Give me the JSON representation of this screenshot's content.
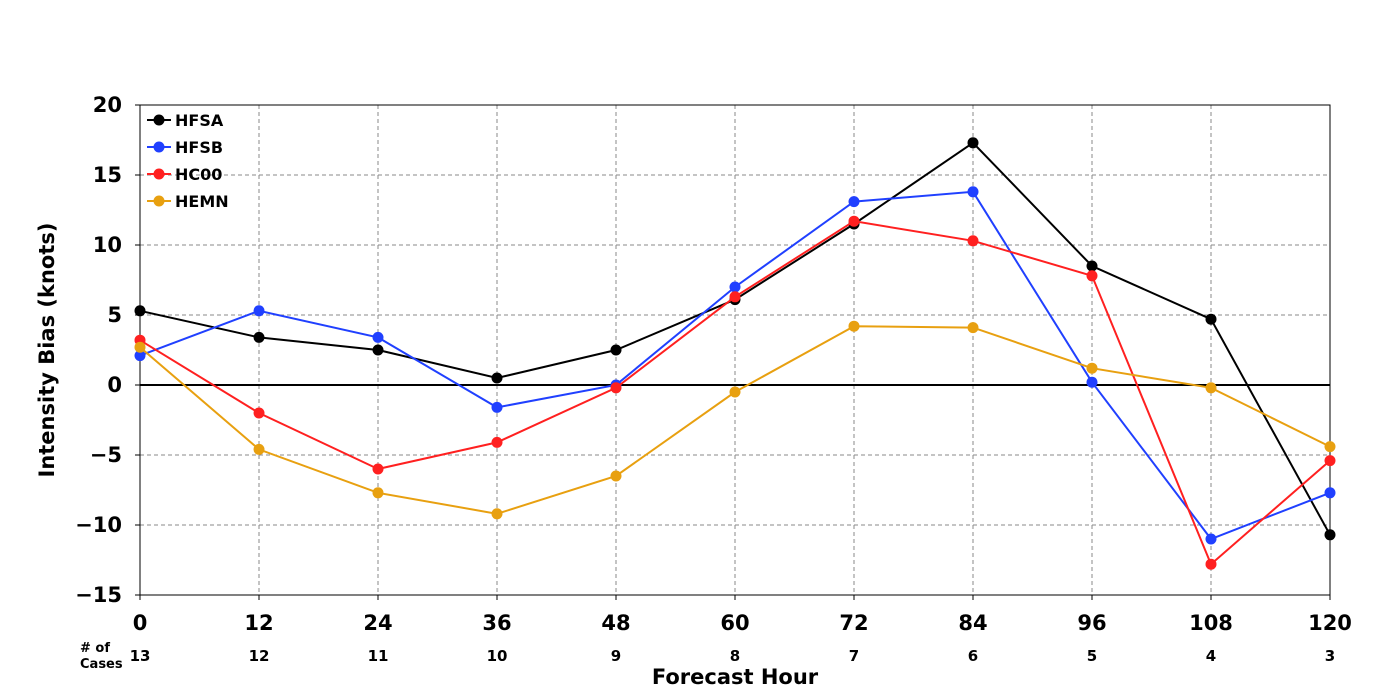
{
  "chart_data": {
    "type": "line",
    "title": "",
    "xlabel": "Forecast Hour",
    "ylabel": "Intensity Bias (knots)",
    "x": [
      0,
      12,
      24,
      36,
      48,
      60,
      72,
      84,
      96,
      108,
      120
    ],
    "x_ticks": [
      "0",
      "12",
      "24",
      "36",
      "48",
      "60",
      "72",
      "84",
      "96",
      "108",
      "120"
    ],
    "y_ticks": [
      "20",
      "15",
      "10",
      "5",
      "0",
      "−5",
      "−10",
      "−15"
    ],
    "y_tick_values": [
      20,
      15,
      10,
      5,
      0,
      -5,
      -10,
      -15
    ],
    "xlim": [
      0,
      120
    ],
    "ylim": [
      -15,
      20
    ],
    "grid": true,
    "legend_position": "top-left",
    "cases_label_line1": "# of",
    "cases_label_line2": "Cases",
    "cases": [
      "13",
      "12",
      "11",
      "10",
      "9",
      "8",
      "7",
      "6",
      "5",
      "4",
      "3"
    ],
    "series": [
      {
        "name": "HFSA",
        "color": "#000000",
        "values": [
          5.3,
          3.4,
          2.5,
          0.5,
          2.5,
          6.1,
          11.5,
          17.3,
          8.5,
          4.7,
          -10.7
        ]
      },
      {
        "name": "HFSB",
        "color": "#2040ff",
        "values": [
          2.1,
          5.3,
          3.4,
          -1.6,
          0.0,
          7.0,
          13.1,
          13.8,
          0.2,
          -11.0,
          -7.7
        ]
      },
      {
        "name": "HC00",
        "color": "#ff2020",
        "values": [
          3.2,
          -2.0,
          -6.0,
          -4.1,
          -0.2,
          6.3,
          11.7,
          10.3,
          7.8,
          -12.8,
          -5.4
        ]
      },
      {
        "name": "HEMN",
        "color": "#e8a010",
        "values": [
          2.7,
          -4.6,
          -7.7,
          -9.2,
          -6.5,
          -0.5,
          4.2,
          4.1,
          1.2,
          -0.2,
          -4.4
        ]
      }
    ]
  }
}
